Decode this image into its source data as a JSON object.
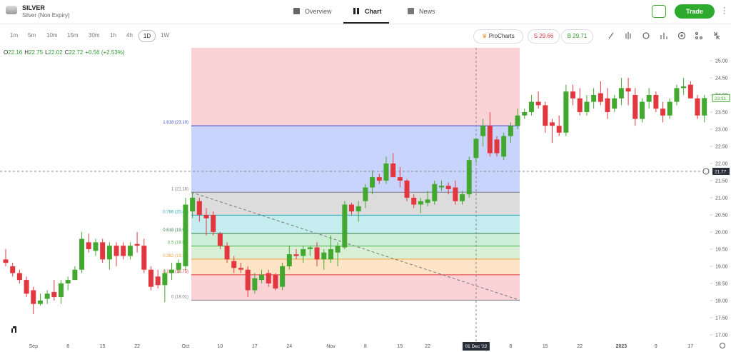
{
  "header": {
    "symbol": "SILVER",
    "description": "Silver (Non Expiry)",
    "tabs": [
      "Overview",
      "Chart",
      "News"
    ],
    "trade": "Trade"
  },
  "toolbar": {
    "timeframes": [
      "1m",
      "5m",
      "10m",
      "15m",
      "30m",
      "1h",
      "4h",
      "1D",
      "1W"
    ],
    "prochart": "ProCharts",
    "sell": "S 29.66",
    "buy": "B 29.71"
  },
  "legend": {
    "o_label": "O",
    "o": "22.16",
    "h_label": "H",
    "h": "22.75",
    "l_label": "L",
    "l": "22.02",
    "c_label": "C",
    "c": "22.72",
    "change": "+0.56 (+2.53%)"
  },
  "chart_data": {
    "type": "candlestick",
    "up_color": "#43a82f",
    "down_color": "#e2373f",
    "grid": false,
    "categories": [
      null,
      null,
      null,
      null,
      "Sep",
      null,
      null,
      null,
      null,
      "8",
      null,
      null,
      null,
      null,
      "15",
      null,
      null,
      null,
      null,
      "22",
      null,
      null,
      null,
      null,
      null,
      null,
      "Oct",
      null,
      null,
      null,
      null,
      "10",
      null,
      null,
      null,
      null,
      "17",
      null,
      null,
      null,
      null,
      "24",
      null,
      null,
      null,
      null,
      null,
      "Nov",
      null,
      null,
      null,
      null,
      "8",
      null,
      null,
      null,
      null,
      "15",
      null,
      null,
      null,
      "22",
      null,
      null,
      null,
      null,
      null,
      null,
      null,
      null,
      null,
      null,
      null,
      "8",
      null,
      null,
      null,
      null,
      "15",
      null,
      null,
      null,
      null,
      "22",
      null,
      null,
      null,
      null,
      null,
      "2023",
      null,
      null,
      null,
      null,
      "9",
      null,
      null,
      null,
      null,
      "17",
      null,
      null
    ],
    "open": [
      19.2,
      19.0,
      18.8,
      18.6,
      18.3,
      17.9,
      18.05,
      18.25,
      18.1,
      18.5,
      18.6,
      18.9,
      19.7,
      19.45,
      19.7,
      19.2,
      19.6,
      19.6,
      19.3,
      19.65,
      19.6,
      18.9,
      18.7,
      18.45,
      18.8,
      18.9,
      19.0,
      20.6,
      20.9,
      20.5,
      20.5,
      19.95,
      19.6,
      19.15,
      18.95,
      18.9,
      18.3,
      18.6,
      18.8,
      18.75,
      18.4,
      19.0,
      19.35,
      19.3,
      19.5,
      19.55,
      19.2,
      19.2,
      19.4,
      19.55,
      20.8,
      20.6,
      20.9,
      21.3,
      21.6,
      21.5,
      22.0,
      21.6,
      21.5,
      21.0,
      20.8,
      20.85,
      20.9,
      21.3,
      21.35,
      21.3,
      20.9,
      21.1,
      22.16,
      22.8,
      23.1,
      22.7,
      22.2,
      22.8,
      23.1,
      23.4,
      23.5,
      23.8,
      23.7,
      23.2,
      23.1,
      22.9,
      24.1,
      23.9,
      23.5,
      23.8,
      24.05,
      23.9,
      23.6,
      23.9,
      24.2,
      24.0,
      23.3,
      23.8,
      24.0,
      23.6,
      23.4,
      23.8,
      24.2,
      24.3,
      23.9,
      23.4
    ],
    "high": [
      19.5,
      19.1,
      18.9,
      18.7,
      18.4,
      18.2,
      18.3,
      18.6,
      18.6,
      18.7,
      19.0,
      20.0,
      19.95,
      19.8,
      19.8,
      19.7,
      19.7,
      19.7,
      19.7,
      20.0,
      19.8,
      19.0,
      18.9,
      18.9,
      19.1,
      19.2,
      21.0,
      21.16,
      21.0,
      20.7,
      20.6,
      20.0,
      19.7,
      19.3,
      19.1,
      19.0,
      18.8,
      18.9,
      18.9,
      18.8,
      19.1,
      19.6,
      19.5,
      19.6,
      19.6,
      19.7,
      19.5,
      19.9,
      19.7,
      20.9,
      20.85,
      20.9,
      21.4,
      21.8,
      21.7,
      22.2,
      22.3,
      21.9,
      21.55,
      21.1,
      21.0,
      21.2,
      21.5,
      21.5,
      21.45,
      21.5,
      21.2,
      22.2,
      22.75,
      23.3,
      23.5,
      22.8,
      22.9,
      23.2,
      23.6,
      23.6,
      24.0,
      24.1,
      23.8,
      23.3,
      23.4,
      24.3,
      24.3,
      24.2,
      24.0,
      24.2,
      24.4,
      24.2,
      24.0,
      24.5,
      24.5,
      24.2,
      23.9,
      24.2,
      24.1,
      23.8,
      23.9,
      24.3,
      24.5,
      24.4,
      24.0,
      24.0
    ],
    "low": [
      19.0,
      18.7,
      18.5,
      18.1,
      17.6,
      17.85,
      17.9,
      18.0,
      17.9,
      18.3,
      18.6,
      18.8,
      19.4,
      19.3,
      19.1,
      18.9,
      19.0,
      19.2,
      19.2,
      19.4,
      18.8,
      18.3,
      18.35,
      17.95,
      18.6,
      18.8,
      18.9,
      20.4,
      20.3,
      19.9,
      19.9,
      19.5,
      19.1,
      18.8,
      18.8,
      18.1,
      18.2,
      18.5,
      18.4,
      18.3,
      18.3,
      18.9,
      19.2,
      19.1,
      19.3,
      19.0,
      18.9,
      19.1,
      19.0,
      19.5,
      20.5,
      20.3,
      20.7,
      21.1,
      21.4,
      21.4,
      21.6,
      21.3,
      20.9,
      20.7,
      20.55,
      20.75,
      20.8,
      21.2,
      21.1,
      20.8,
      20.8,
      21.0,
      22.02,
      22.5,
      22.2,
      22.2,
      22.1,
      22.6,
      23.0,
      23.3,
      23.4,
      23.6,
      22.9,
      22.6,
      22.8,
      22.8,
      23.7,
      23.4,
      23.4,
      23.6,
      23.7,
      23.3,
      23.5,
      23.7,
      23.7,
      23.1,
      23.2,
      23.6,
      23.5,
      23.2,
      23.3,
      23.7,
      24.0,
      23.9,
      23.3,
      23.2
    ],
    "close": [
      19.1,
      18.8,
      18.6,
      18.2,
      17.9,
      18.0,
      18.2,
      18.1,
      18.5,
      18.6,
      18.9,
      19.8,
      19.5,
      19.7,
      19.2,
      19.6,
      19.3,
      19.3,
      19.6,
      19.6,
      18.9,
      18.4,
      18.45,
      18.8,
      18.9,
      19.1,
      20.8,
      21.0,
      20.5,
      20.4,
      20.0,
      19.6,
      19.2,
      18.95,
      18.9,
      18.3,
      18.65,
      18.75,
      18.5,
      18.35,
      19.0,
      19.35,
      19.3,
      19.5,
      19.55,
      19.2,
      19.4,
      19.5,
      19.6,
      20.8,
      20.6,
      20.75,
      21.3,
      21.6,
      21.5,
      22.0,
      21.6,
      21.5,
      21.0,
      20.8,
      20.9,
      20.95,
      21.4,
      21.35,
      21.25,
      20.9,
      21.1,
      22.1,
      22.72,
      23.1,
      22.3,
      22.3,
      22.8,
      23.1,
      23.4,
      23.5,
      23.8,
      23.7,
      23.1,
      23.1,
      22.9,
      24.1,
      23.9,
      23.5,
      23.8,
      24.0,
      23.8,
      23.5,
      23.9,
      24.2,
      24.1,
      23.3,
      23.8,
      24.0,
      23.6,
      23.4,
      23.8,
      24.2,
      24.25,
      23.9,
      23.4,
      23.91
    ],
    "ylim": [
      16.81,
      25.375
    ],
    "yticks": [
      {
        "value": 17,
        "label": "17.00"
      },
      {
        "value": 17.5,
        "label": "17.50"
      },
      {
        "value": 18,
        "label": "18.00"
      },
      {
        "value": 18.5,
        "label": "18.50"
      },
      {
        "value": 19,
        "label": "19.00"
      },
      {
        "value": 19.5,
        "label": "19.50"
      },
      {
        "value": 20,
        "label": "20.00"
      },
      {
        "value": 20.5,
        "label": "20.50"
      },
      {
        "value": 21,
        "label": "21.00"
      },
      {
        "value": 21.5,
        "label": "21.50"
      },
      {
        "value": 22,
        "label": "22.00"
      },
      {
        "value": 22.5,
        "label": "22.50"
      },
      {
        "value": 23,
        "label": "23.00"
      },
      {
        "value": 23.5,
        "label": "23.50"
      },
      {
        "value": 24,
        "label": "24.00"
      },
      {
        "value": 24.5,
        "label": "24.50"
      },
      {
        "value": 25,
        "label": "25.00"
      }
    ],
    "crosshair_label": "01 Dec '22",
    "current_price": 21.77,
    "last_price": 23.91,
    "fibonacci": [
      {
        "label": "0 (18.01)",
        "price": 18.01,
        "color": "#787b86",
        "fill": "#fbd3d6"
      },
      {
        "label": "0.236 (18.75)",
        "price": 18.75,
        "color": "#e2373f",
        "fill": "#fde4c6"
      },
      {
        "label": "0.382 (19.21)",
        "price": 19.21,
        "color": "#f2a33a",
        "fill": "#d9f0d6"
      },
      {
        "label": "0.5 (19.59)",
        "price": 19.59,
        "color": "#4caf50",
        "fill": "#cdeed6"
      },
      {
        "label": "0.618 (19.96)",
        "price": 19.96,
        "color": "#2e7d4f",
        "fill": "#c5ecee"
      },
      {
        "label": "0.786 (20.49)",
        "price": 20.49,
        "color": "#25a7b9",
        "fill": "#dcdcdc"
      },
      {
        "label": "1 (21.16)",
        "price": 21.16,
        "color": "#787b86",
        "fill": "#c8d4fb"
      },
      {
        "label": "1.618 (23.10)",
        "price": 23.1,
        "color": "#3f51c9",
        "fill": "#fbd3d6"
      }
    ]
  }
}
